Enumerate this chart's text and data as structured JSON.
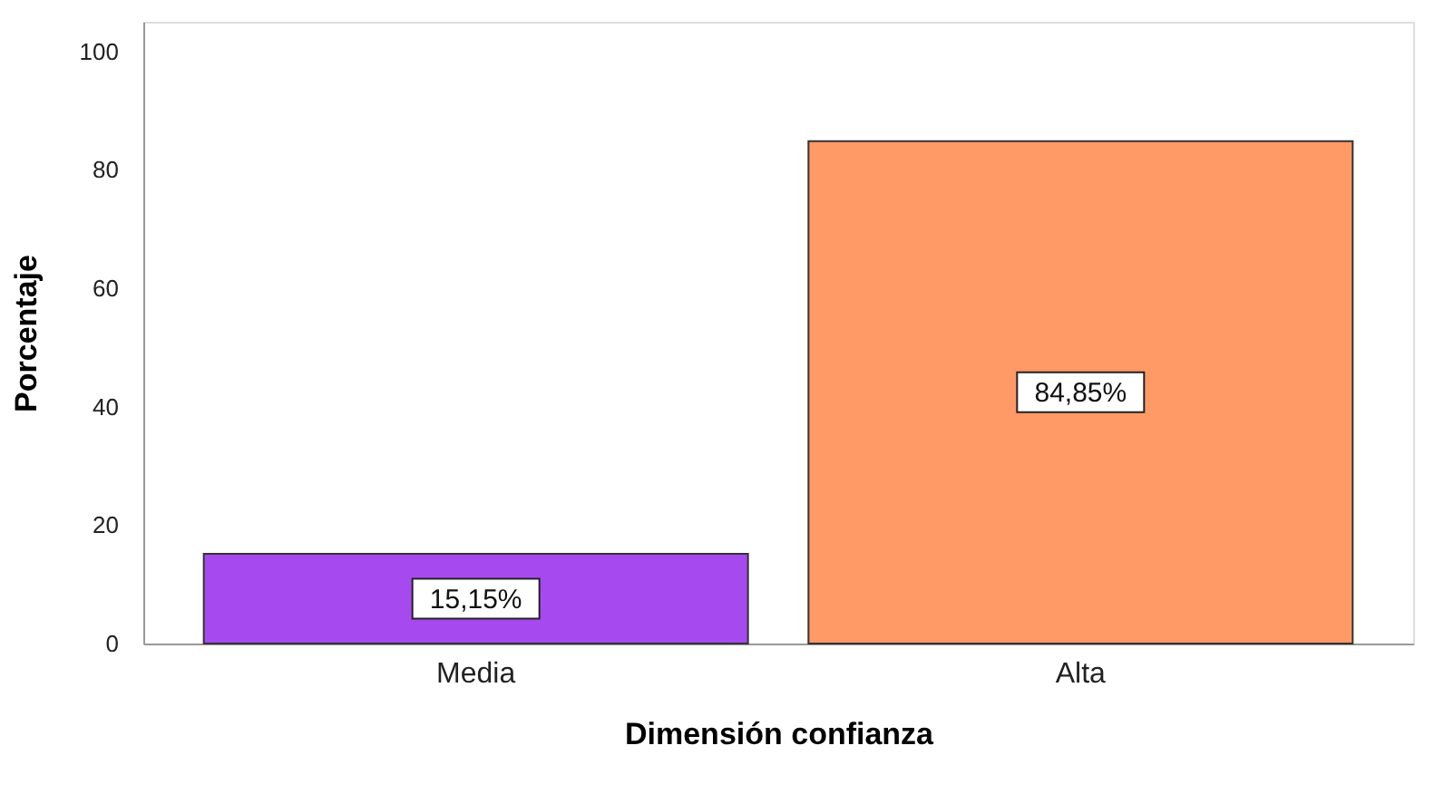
{
  "chart_data": {
    "type": "bar",
    "xlabel": "Dimensión confianza",
    "ylabel": "Porcentaje",
    "categories": [
      "Media",
      "Alta"
    ],
    "values": [
      15.15,
      84.85
    ],
    "colors": [
      "#a64af0",
      "#ff9966"
    ],
    "value_labels": [
      "15,15%",
      "84,85%"
    ],
    "ylim": [
      0,
      105
    ],
    "yticks": [
      0,
      20,
      40,
      60,
      80,
      100
    ],
    "grid": false
  }
}
